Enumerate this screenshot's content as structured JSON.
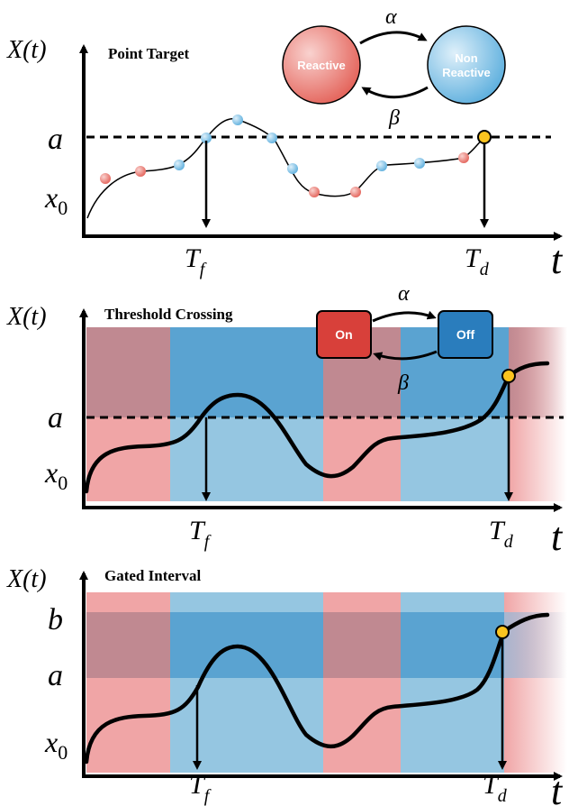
{
  "colors": {
    "reactive_red": "#ec7b72",
    "nonreactive_blue": "#7ec0e4",
    "on_red": "#d8403a",
    "off_blue": "#2a7dbd",
    "band_red": "#f0a5a6",
    "band_blue": "#95c6e1",
    "band_red_dark": "#c08991",
    "band_blue_dark": "#5aa3d1",
    "marker_yellow": "#fbc41f"
  },
  "panels": [
    {
      "title": "Point Target",
      "y_label": "X(t)",
      "levels": [
        {
          "symbol": "a"
        }
      ],
      "x0": {
        "base": "x",
        "sub": "0"
      },
      "t_axis": "t",
      "tf": {
        "base": "T",
        "sub": "f"
      },
      "td": {
        "base": "T",
        "sub": "d"
      },
      "states": {
        "first": "Reactive",
        "second_line1": "Non",
        "second_line2": "Reactive",
        "forward_rate": "α",
        "backward_rate": "β"
      }
    },
    {
      "title": "Threshold Crossing",
      "y_label": "X(t)",
      "levels": [
        {
          "symbol": "a"
        }
      ],
      "x0": {
        "base": "x",
        "sub": "0"
      },
      "t_axis": "t",
      "tf": {
        "base": "T",
        "sub": "f"
      },
      "td": {
        "base": "T",
        "sub": "d"
      },
      "states": {
        "first": "On",
        "second": "Off",
        "forward_rate": "α",
        "backward_rate": "β"
      }
    },
    {
      "title": "Gated Interval",
      "y_label": "X(t)",
      "levels": [
        {
          "symbol": "b"
        },
        {
          "symbol": "a"
        }
      ],
      "x0": {
        "base": "x",
        "sub": "0"
      },
      "t_axis": "t",
      "tf": {
        "base": "T",
        "sub": "f"
      },
      "td": {
        "base": "T",
        "sub": "d"
      }
    }
  ]
}
